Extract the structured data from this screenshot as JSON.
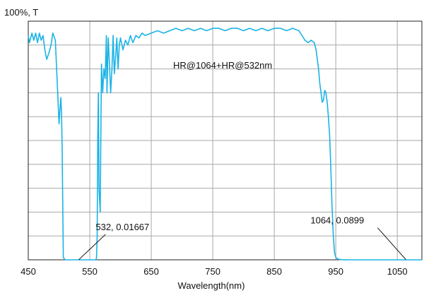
{
  "chart_data": {
    "type": "line",
    "title": "HR@1064+HR@532nm",
    "xlabel": "Wavelength(nm)",
    "ylabel": "100%, T",
    "xlim": [
      450,
      1090
    ],
    "ylim": [
      0,
      100
    ],
    "xticks": [
      450,
      550,
      650,
      750,
      850,
      950,
      1050
    ],
    "yticks": [
      0,
      10,
      20,
      30,
      40,
      50,
      60,
      70,
      80,
      90,
      100
    ],
    "grid": true,
    "line_color": "#1ab3e6",
    "series": [
      {
        "x": [
          450,
          452,
          456,
          459,
          462,
          465,
          468,
          471,
          474,
          477,
          480,
          484,
          487,
          490,
          494,
          497,
          500,
          502,
          503,
          504,
          505,
          507,
          510,
          515,
          520,
          525,
          530,
          535,
          540,
          545,
          550,
          555,
          558,
          560,
          561,
          562,
          563,
          564,
          565,
          567,
          569,
          571,
          573,
          575,
          577,
          578,
          579,
          580,
          582,
          584,
          586,
          588,
          590,
          592,
          594,
          596,
          598,
          600,
          604,
          608,
          612,
          616,
          620,
          625,
          630,
          635,
          640,
          650,
          660,
          670,
          680,
          690,
          700,
          710,
          720,
          730,
          740,
          750,
          760,
          770,
          780,
          790,
          800,
          810,
          820,
          830,
          840,
          850,
          860,
          870,
          880,
          890,
          900,
          905,
          910,
          915,
          918,
          920,
          922,
          924,
          926,
          928,
          930,
          932,
          934,
          936,
          938,
          940,
          942,
          944,
          946,
          948,
          950,
          952,
          955,
          958,
          960,
          965,
          970,
          980,
          1000,
          1020,
          1040,
          1060,
          1080,
          1090
        ],
        "y": [
          94,
          91,
          95,
          92,
          95,
          91,
          95,
          92,
          94,
          88,
          84,
          87,
          90,
          95,
          92,
          75,
          57,
          65,
          68,
          62,
          48,
          1,
          0,
          0,
          0,
          0,
          0,
          0,
          0,
          0,
          0,
          0,
          0,
          0,
          1,
          10,
          50,
          70,
          30,
          20,
          82,
          70,
          80,
          76,
          94,
          70,
          82,
          93,
          82,
          70,
          80,
          94,
          78,
          85,
          93,
          80,
          90,
          93,
          88,
          92,
          90,
          94,
          91,
          94,
          93,
          95,
          94,
          95,
          96,
          95,
          96,
          97,
          96,
          97,
          96,
          97,
          96,
          97,
          97,
          96,
          97,
          97,
          96,
          97,
          96,
          97,
          96,
          97,
          97,
          96,
          97,
          96,
          92,
          91,
          92,
          91,
          88,
          84,
          80,
          74,
          70,
          66,
          67,
          71,
          70,
          66,
          60,
          52,
          38,
          22,
          10,
          3,
          1,
          0.5,
          0.2,
          0.1,
          0.05,
          0.03,
          0,
          0,
          0,
          0,
          0,
          0,
          0,
          0
        ]
      }
    ],
    "annotations": [
      {
        "text": "532, 0.01667",
        "x": 532,
        "y": 0.01667
      },
      {
        "text": "1064, 0.0899",
        "x": 1064,
        "y": 0.0899
      }
    ]
  }
}
